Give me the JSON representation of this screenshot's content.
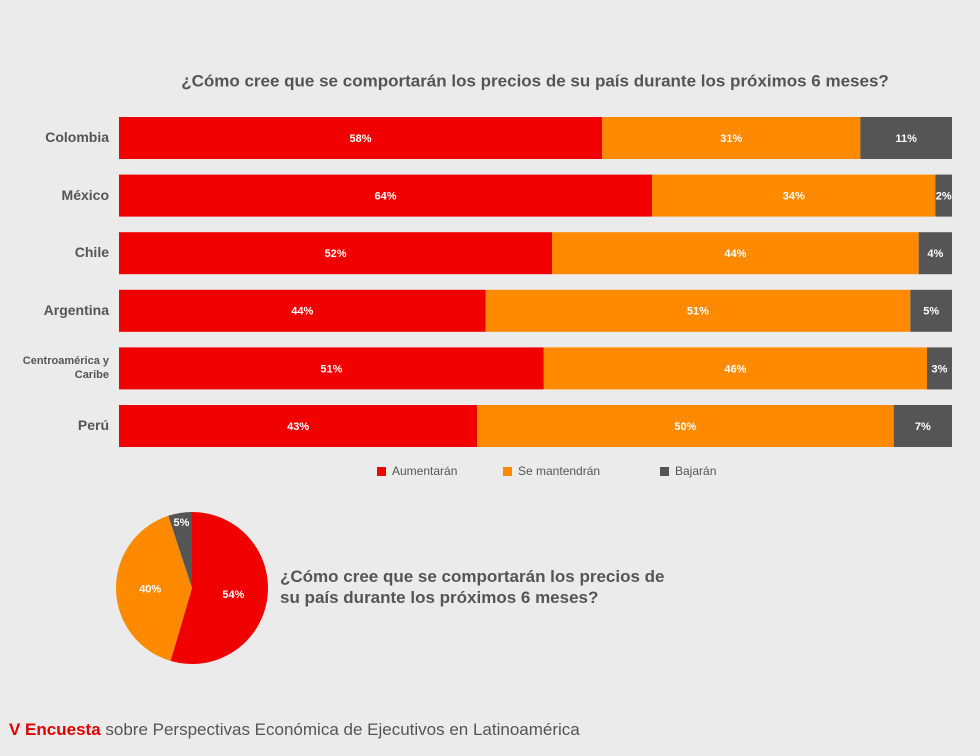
{
  "chart_data": [
    {
      "type": "bar",
      "orientation": "horizontal",
      "stacked": true,
      "title": "¿Cómo cree que se comportarán los precios de su país durante los próximos 6 meses?",
      "categories": [
        "Colombia",
        "México",
        "Chile",
        "Argentina",
        "Centroamérica y Caribe",
        "Perú"
      ],
      "series": [
        {
          "name": "Aumentarán",
          "color": "#f00000",
          "values": [
            58,
            64,
            52,
            44,
            51,
            43
          ],
          "value_labels": [
            "58%",
            "64%",
            "52%",
            "44%",
            "51%",
            "43%"
          ]
        },
        {
          "name": "Se mantendrán",
          "color": "#ff8a00",
          "values": [
            31,
            34,
            44,
            51,
            46,
            50
          ],
          "value_labels": [
            "31%",
            "34%",
            "44%",
            "51%",
            "46%",
            "50%"
          ]
        },
        {
          "name": "Bajarán",
          "color": "#555555",
          "values": [
            11,
            2,
            4,
            5,
            3,
            7
          ],
          "value_labels": [
            "11%",
            "2%",
            "4%",
            "5%",
            "3%",
            "7%"
          ]
        }
      ],
      "xlim": [
        0,
        100
      ],
      "legend": "bottom"
    },
    {
      "type": "pie",
      "title": "¿Cómo cree que se comportarán los precios de su país durante los próximos 6 meses?",
      "values": [
        54,
        40,
        5
      ],
      "value_labels": [
        "54%",
        "40%",
        "5%"
      ],
      "colors": [
        "#f00000",
        "#ff8a00",
        "#555555"
      ]
    }
  ],
  "footer": {
    "highlight": "V Encuesta",
    "text": "sobre Perspectivas Económica de Ejecutivos en Latinoamérica"
  }
}
